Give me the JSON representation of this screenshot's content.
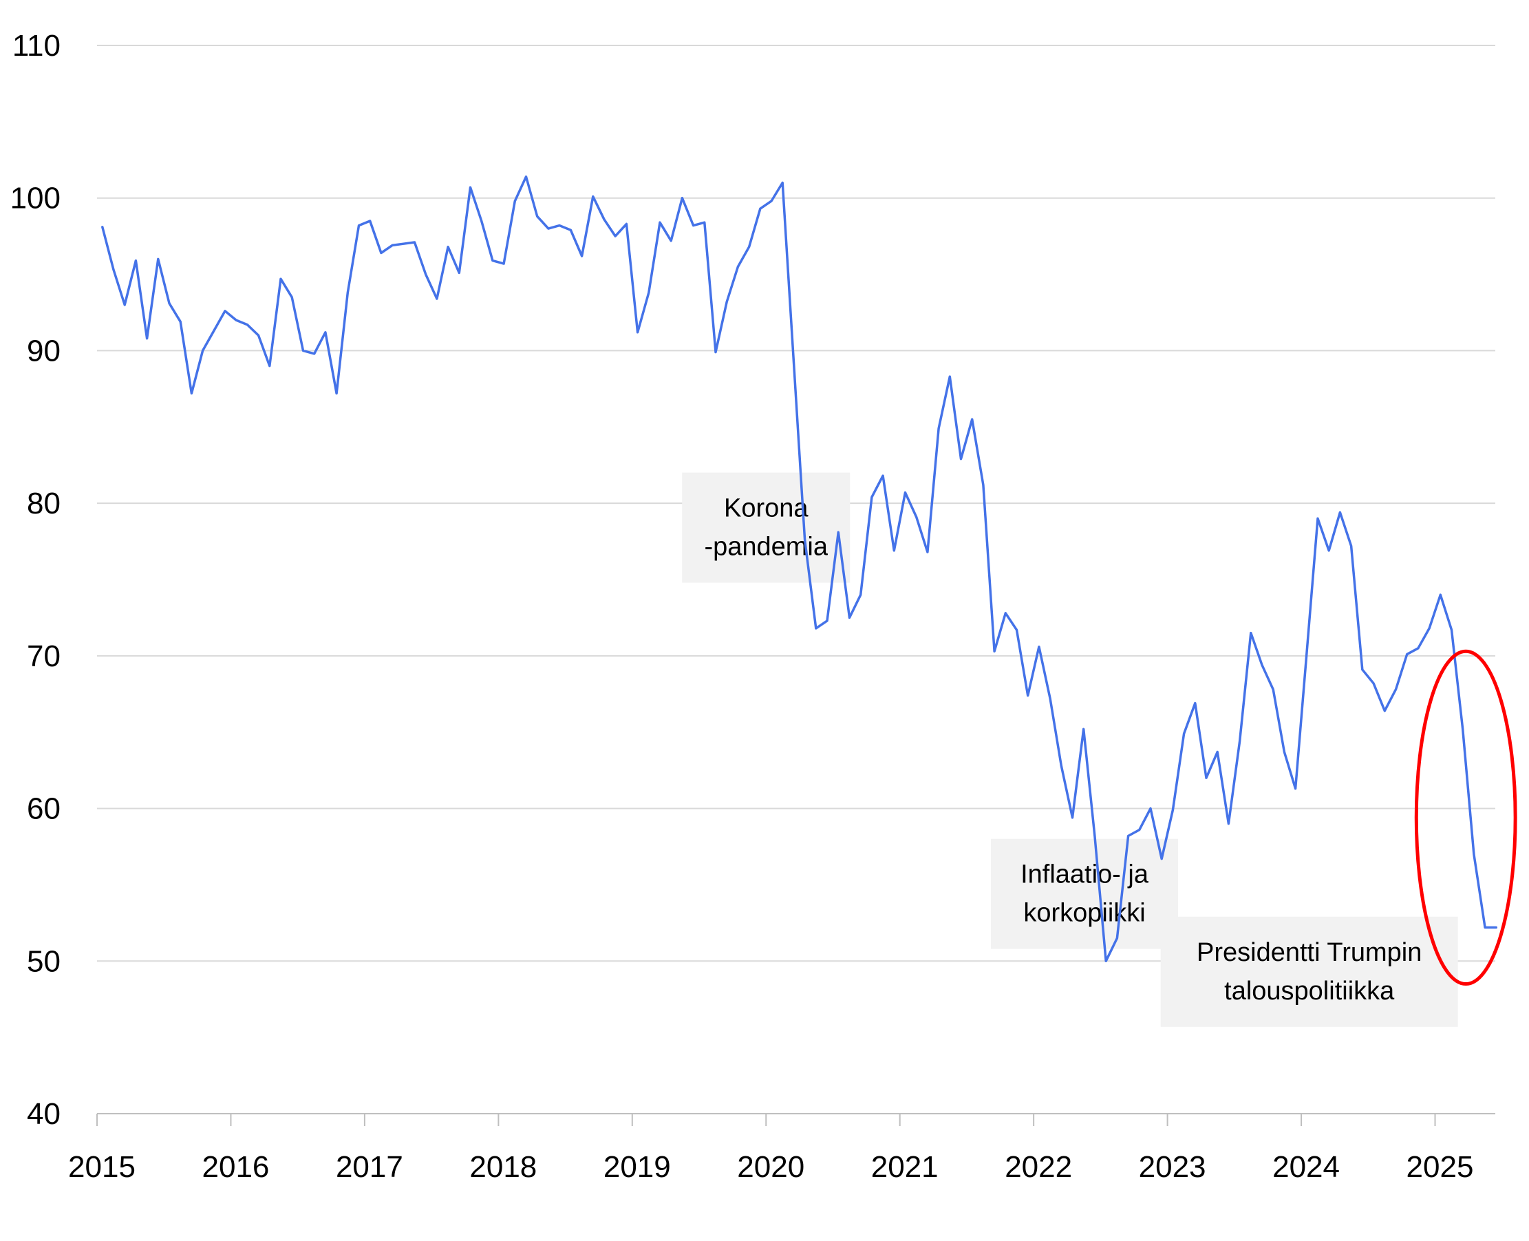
{
  "chart_data": {
    "type": "line",
    "title": "",
    "xlabel": "",
    "ylabel": "",
    "xlim": [
      2015,
      2025.45
    ],
    "ylim": [
      40,
      110
    ],
    "y_ticks": [
      40,
      50,
      60,
      70,
      80,
      90,
      100,
      110
    ],
    "x_ticks": [
      2015,
      2016,
      2017,
      2018,
      2019,
      2020,
      2021,
      2022,
      2023,
      2024,
      2025
    ],
    "x_tick_labels": [
      "2015",
      "2016",
      "2017",
      "2018",
      "2019",
      "2020",
      "2021",
      "2022",
      "2023",
      "2024",
      "2025"
    ],
    "grid": "horizontal",
    "series": [
      {
        "name": "",
        "color": "#4472e8",
        "values": [
          98.1,
          95.3,
          93.0,
          95.9,
          90.8,
          96.0,
          93.1,
          91.9,
          87.2,
          90.0,
          91.3,
          92.6,
          92.0,
          91.7,
          91.0,
          89.0,
          94.7,
          93.5,
          90.0,
          89.8,
          91.2,
          87.2,
          93.8,
          98.2,
          98.5,
          96.4,
          96.9,
          97.0,
          97.1,
          95.0,
          93.4,
          96.8,
          95.1,
          100.7,
          98.5,
          95.9,
          95.7,
          99.8,
          101.4,
          98.8,
          98.0,
          98.2,
          97.9,
          96.2,
          100.1,
          98.6,
          97.5,
          98.3,
          91.2,
          93.8,
          98.4,
          97.2,
          100.0,
          98.2,
          98.4,
          89.9,
          93.2,
          95.5,
          96.8,
          99.3,
          99.8,
          101.0,
          89.3,
          77.6,
          71.8,
          72.3,
          78.1,
          72.5,
          74.0,
          80.4,
          81.8,
          76.9,
          80.7,
          79.1,
          76.8,
          84.9,
          88.3,
          82.9,
          85.5,
          81.2,
          70.3,
          72.8,
          71.7,
          67.4,
          70.6,
          67.2,
          62.8,
          59.4,
          65.2,
          58.2,
          50.0,
          51.5,
          58.2,
          58.6,
          60.0,
          56.7,
          59.9,
          64.9,
          66.9,
          62.0,
          63.7,
          59.0,
          64.4,
          71.5,
          69.4,
          67.8,
          63.7,
          61.3,
          70.1,
          79.0,
          76.9,
          79.4,
          77.2,
          69.1,
          68.2,
          66.4,
          67.8,
          70.1,
          70.5,
          71.8,
          74.0,
          71.7,
          65.2,
          57.0,
          52.2,
          52.2
        ]
      }
    ],
    "x_start": 2015.04,
    "x_step_months": 1,
    "annotations": [
      {
        "lines": [
          "Korona",
          "-pandemia"
        ],
        "x": 2020.0,
        "y": 78.4
      },
      {
        "lines": [
          "Inflaatio- ja",
          "korkopiikki"
        ],
        "x": 2022.38,
        "y": 54.4
      },
      {
        "lines": [
          "Presidentti Trumpin",
          "talouspolitiikka"
        ],
        "x": 2024.06,
        "y": 49.3
      }
    ],
    "highlight": {
      "shape": "ellipse",
      "color": "#ff0000",
      "x": 2025.23,
      "y": 59.4,
      "rx_years": 0.37,
      "ry": 10.9
    }
  }
}
